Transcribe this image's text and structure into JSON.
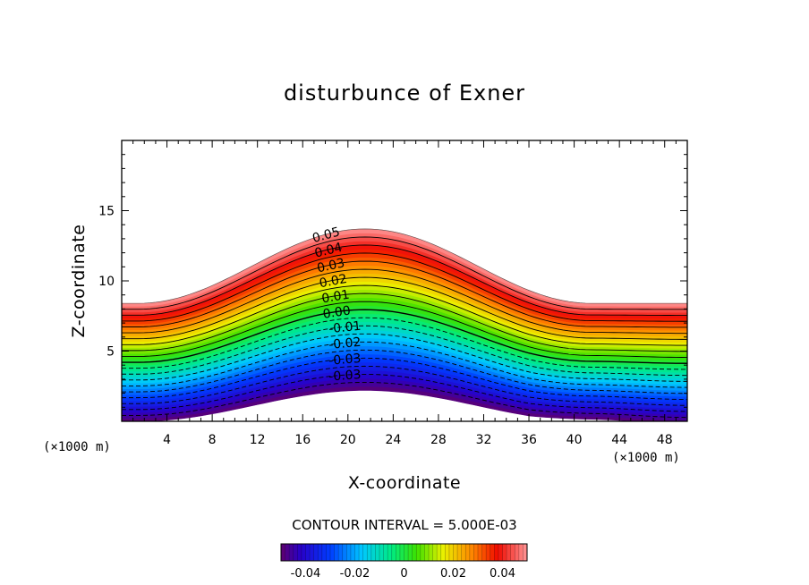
{
  "chart_data": {
    "type": "contour",
    "title": "disturbunce of Exner",
    "xlabel": "X-coordinate",
    "ylabel": "Z-coordinate",
    "x_unit": "(×1000 m)",
    "y_unit": "(×1000 m)",
    "xlim": [
      0,
      50
    ],
    "ylim": [
      0,
      20
    ],
    "x_ticks": [
      4,
      8,
      12,
      16,
      20,
      24,
      28,
      32,
      36,
      40,
      44,
      48
    ],
    "y_ticks": [
      5,
      10,
      15
    ],
    "contour_interval_text": "CONTOUR INTERVAL = 5.000E-03",
    "levels": [
      -0.05,
      -0.045,
      -0.04,
      -0.035,
      -0.03,
      -0.025,
      -0.02,
      -0.015,
      -0.01,
      -0.005,
      0.0,
      0.005,
      0.01,
      0.015,
      0.02,
      0.025,
      0.03,
      0.035,
      0.04,
      0.045,
      0.05
    ],
    "contour_labels": [
      "0.05",
      "0.04",
      "0.03",
      "0.02",
      "0.01",
      "0.00",
      "-0.01",
      "-0.02",
      "-0.03",
      "-0.03"
    ],
    "terrain": {
      "base_height": 0.0,
      "peak_x": 21.5,
      "peak_height": 2.2,
      "half_width": 10
    },
    "field_top": {
      "flat_z": 8.4,
      "peak_z": 13.7
    },
    "colorbar": {
      "range": [
        -0.05,
        0.05
      ],
      "tick_values": [
        -0.04,
        -0.02,
        0,
        0.02,
        0.04
      ],
      "tick_labels": [
        "-0.04",
        "-0.02",
        "0",
        "0.02",
        "0.04"
      ]
    }
  }
}
